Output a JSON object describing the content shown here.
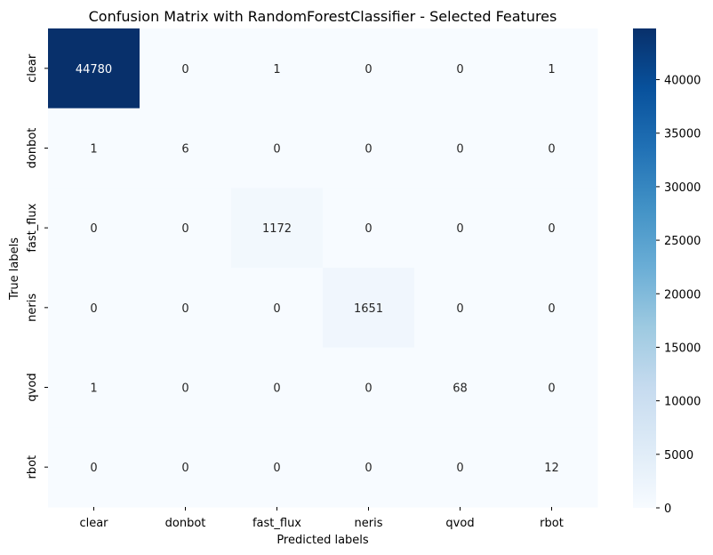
{
  "chart_data": {
    "type": "heatmap",
    "title": "Confusion Matrix with RandomForestClassifier - Selected Features",
    "xlabel": "Predicted labels",
    "ylabel": "True labels",
    "x_categories": [
      "clear",
      "donbot",
      "fast_flux",
      "neris",
      "qvod",
      "rbot"
    ],
    "y_categories": [
      "clear",
      "donbot",
      "fast_flux",
      "neris",
      "qvod",
      "rbot"
    ],
    "values": [
      [
        44780,
        0,
        1,
        0,
        0,
        1
      ],
      [
        1,
        6,
        0,
        0,
        0,
        0
      ],
      [
        0,
        0,
        1172,
        0,
        0,
        0
      ],
      [
        0,
        0,
        0,
        1651,
        0,
        0
      ],
      [
        1,
        0,
        0,
        0,
        68,
        0
      ],
      [
        0,
        0,
        0,
        0,
        0,
        12
      ]
    ],
    "colormap": "Blues",
    "colorbar": {
      "min": 0,
      "max": 44780,
      "ticks": [
        0,
        5000,
        10000,
        15000,
        20000,
        25000,
        30000,
        35000,
        40000
      ],
      "tick_labels": [
        "0",
        "5000",
        "10000",
        "15000",
        "20000",
        "25000",
        "30000",
        "35000",
        "40000"
      ]
    }
  }
}
